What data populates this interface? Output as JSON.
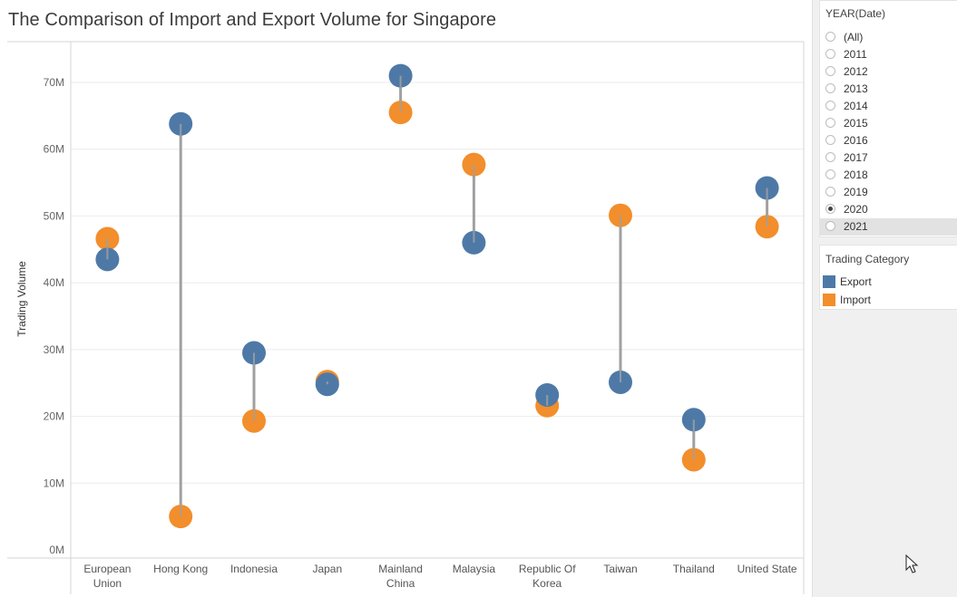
{
  "title": "The Comparison of Import and Export Volume for Singapore",
  "filter": {
    "title": "YEAR(Date)",
    "options": [
      "(All)",
      "2011",
      "2012",
      "2013",
      "2014",
      "2015",
      "2016",
      "2017",
      "2018",
      "2019",
      "2020",
      "2021"
    ],
    "selected": "2020",
    "hovered": "2021"
  },
  "legend": {
    "title": "Trading Category",
    "items": [
      {
        "label": "Export",
        "color": "#4e79a7"
      },
      {
        "label": "Import",
        "color": "#f28e2b"
      }
    ]
  },
  "colors": {
    "export": "#4e79a7",
    "import": "#f28e2b",
    "connector": "#a0a0a0"
  },
  "chart_data": {
    "type": "scatter",
    "ylabel": "Trading Volume",
    "xlabel": "",
    "ylim": [
      0,
      76000000
    ],
    "yticks": [
      0,
      10000000,
      20000000,
      30000000,
      40000000,
      50000000,
      60000000,
      70000000
    ],
    "ytick_labels": [
      "0M",
      "10M",
      "20M",
      "30M",
      "40M",
      "50M",
      "60M",
      "70M"
    ],
    "grid": true,
    "categories": [
      [
        "European",
        "Union"
      ],
      [
        "Hong Kong"
      ],
      [
        "Indonesia"
      ],
      [
        "Japan"
      ],
      [
        "Mainland",
        "China"
      ],
      [
        "Malaysia"
      ],
      [
        "Republic Of",
        "Korea"
      ],
      [
        "Taiwan"
      ],
      [
        "Thailand"
      ],
      [
        "United State"
      ]
    ],
    "series": [
      {
        "name": "Export",
        "values": [
          43500000,
          63800000,
          29500000,
          24800000,
          71000000,
          46000000,
          23200000,
          25100000,
          19500000,
          54200000
        ]
      },
      {
        "name": "Import",
        "values": [
          46600000,
          5000000,
          19300000,
          25200000,
          65500000,
          57700000,
          21600000,
          50100000,
          13500000,
          48400000
        ]
      }
    ]
  }
}
